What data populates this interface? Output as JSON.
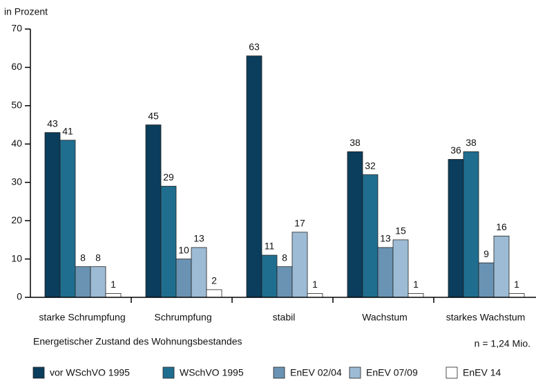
{
  "chart_data": {
    "type": "bar",
    "y_label": "in Prozent",
    "x_label": "Energetischer Zustand des Wohnungsbestandes",
    "annotation": "n = 1,24 Mio.",
    "categories": [
      "starke Schrumpfung",
      "Schrumpfung",
      "stabil",
      "Wachstum",
      "starkes Wachstum"
    ],
    "series": [
      {
        "name": "vor WSchVO 1995",
        "color": "#0b3d5c",
        "values": [
          43,
          45,
          63,
          38,
          36
        ]
      },
      {
        "name": "WSchVO 1995",
        "color": "#1f6e8f",
        "values": [
          41,
          29,
          11,
          32,
          38
        ]
      },
      {
        "name": "EnEV 02/04",
        "color": "#6a93b3",
        "values": [
          8,
          10,
          8,
          13,
          9
        ]
      },
      {
        "name": "EnEV 07/09",
        "color": "#9dbbd4",
        "values": [
          8,
          13,
          17,
          15,
          16
        ]
      },
      {
        "name": "EnEV 14",
        "color": "#ffffff",
        "values": [
          1,
          2,
          1,
          1,
          1
        ]
      }
    ],
    "ylim": [
      0,
      70
    ],
    "yticks": [
      0,
      10,
      20,
      30,
      40,
      50,
      60,
      70
    ],
    "legend": "bottom"
  }
}
